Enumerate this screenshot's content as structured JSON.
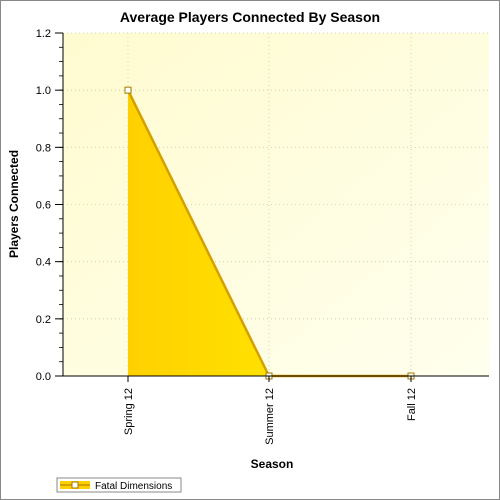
{
  "chart_data": {
    "type": "area",
    "title": "Average Players Connected By Season",
    "xlabel": "Season",
    "ylabel": "Players Connected",
    "categories": [
      "Spring 12",
      "Summer 12",
      "Fall 12"
    ],
    "series": [
      {
        "name": "Fatal Dimensions",
        "values": [
          1.0,
          0.0,
          0.0
        ]
      }
    ],
    "ylim": [
      0,
      1.2
    ],
    "yticks": [
      "0.0",
      "0.2",
      "0.4",
      "0.6",
      "0.8",
      "1.0",
      "1.2"
    ],
    "grid": true,
    "legend_position": "bottom-left",
    "colors": {
      "fill_start": "#ffd000",
      "fill_end": "#fff200",
      "line": "#d4a000",
      "plot_bg_start": "#fffbd0",
      "plot_bg_end": "#ffffee",
      "marker_fill": "#ffffff"
    }
  }
}
